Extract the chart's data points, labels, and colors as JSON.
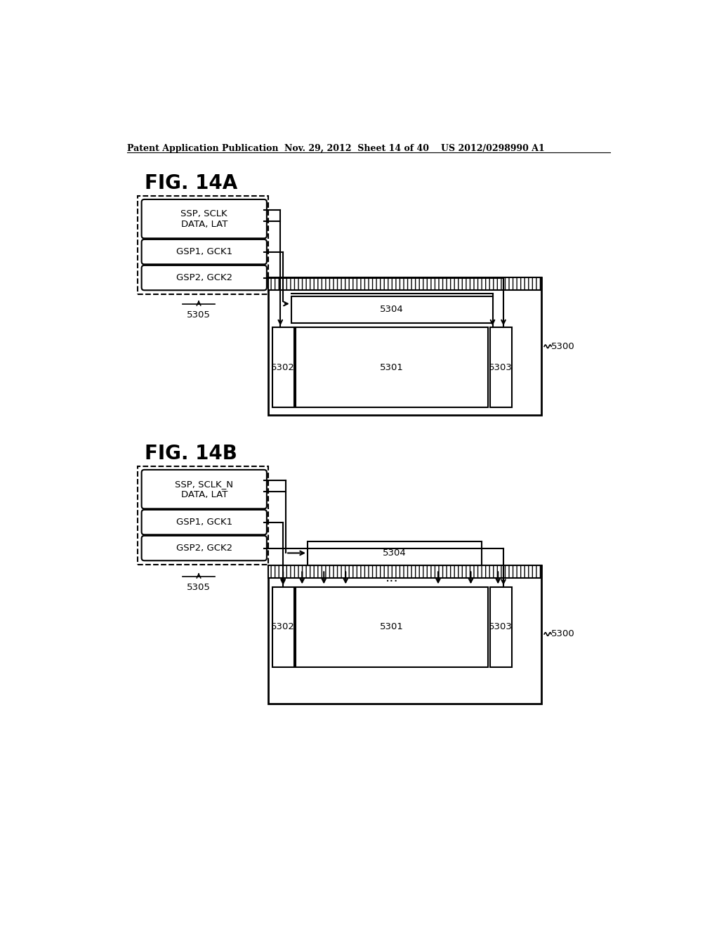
{
  "bg_color": "#ffffff",
  "header_left": "Patent Application Publication",
  "header_mid": "Nov. 29, 2012  Sheet 14 of 40",
  "header_right": "US 2012/0298990 A1",
  "fig_a_label": "FIG. 14A",
  "fig_b_label": "FIG. 14B",
  "box_ssp_a": "SSP, SCLK\nDATA, LAT",
  "box_gsp1_a": "GSP1, GCK1",
  "box_gsp2_a": "GSP2, GCK2",
  "box_ssp_b": "SSP, SCLK_N\nDATA, LAT",
  "box_gsp1_b": "GSP1, GCK1",
  "box_gsp2_b": "GSP2, GCK2",
  "label_5305": "5305",
  "label_5300_a": "5300",
  "label_5301_a": "5301",
  "label_5302_a": "5302",
  "label_5303_a": "5303",
  "label_5304_a": "5304",
  "label_5300_b": "5300",
  "label_5301_b": "5301",
  "label_5302_b": "5302",
  "label_5303_b": "5303",
  "label_5304_b": "5304",
  "dots": "..."
}
